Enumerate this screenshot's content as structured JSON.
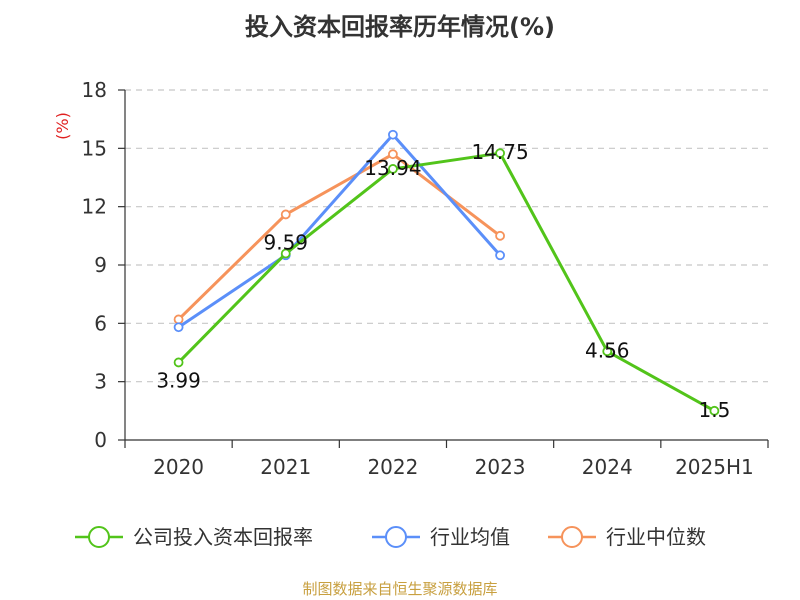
{
  "colors": {
    "company": "#52c41a",
    "avg": "#5b8ff9",
    "median": "#f6935b",
    "source": "#c8a040",
    "unit": "#e02020"
  },
  "legend": {
    "items": [
      {
        "label": "公司投入资本回报率"
      },
      {
        "label": "行业均值"
      },
      {
        "label": "行业中位数"
      }
    ]
  },
  "source_text": "制图数据来自恒生聚源数据库",
  "chart_data": {
    "type": "line",
    "title": "投入资本回报率历年情况(%)",
    "ylabel": "(%)",
    "xlabel": "",
    "categories": [
      "2020",
      "2021",
      "2022",
      "2023",
      "2024",
      "2025H1"
    ],
    "yticks": [
      "0",
      "3",
      "6",
      "9",
      "12",
      "15",
      "18"
    ],
    "ylim": [
      0,
      18
    ],
    "grid": true,
    "legend_position": "bottom",
    "series": [
      {
        "name": "公司投入资本回报率",
        "color_key": "company",
        "show_labels": true,
        "labels": [
          "3.99",
          "9.59",
          "13.94",
          "14.75",
          "4.56",
          "1.5"
        ],
        "values": [
          3.99,
          9.59,
          13.94,
          14.75,
          4.56,
          1.5
        ]
      },
      {
        "name": "行业均值",
        "color_key": "avg",
        "show_labels": false,
        "values": [
          5.8,
          9.5,
          15.7,
          9.5,
          null,
          null
        ]
      },
      {
        "name": "行业中位数",
        "color_key": "median",
        "show_labels": false,
        "values": [
          6.2,
          11.6,
          14.7,
          10.5,
          null,
          null
        ]
      }
    ]
  }
}
